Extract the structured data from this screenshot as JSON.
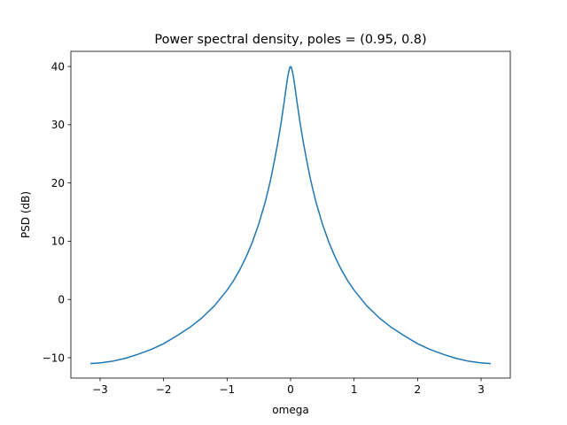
{
  "chart_data": {
    "type": "line",
    "title": "Power spectral density, poles = (0.95, 0.8)",
    "xlabel": "omega",
    "ylabel": "PSD (dB)",
    "xlim": [
      -3.46,
      3.46
    ],
    "ylim": [
      -13.5,
      42.6
    ],
    "xticks": [
      -3,
      -2,
      -1,
      0,
      1,
      2,
      3
    ],
    "xtick_labels": [
      "−3",
      "−2",
      "−1",
      "0",
      "1",
      "2",
      "3"
    ],
    "yticks": [
      -10,
      0,
      10,
      20,
      30,
      40
    ],
    "ytick_labels": [
      "−10",
      "0",
      "10",
      "20",
      "30",
      "40"
    ],
    "grid": false,
    "line_color": "#1f77b4",
    "series": [
      {
        "x": [
          -3.1416,
          -3.0,
          -2.8,
          -2.6,
          -2.4,
          -2.2,
          -2.0,
          -1.8,
          -1.6,
          -1.4,
          -1.2,
          -1.0,
          -0.9,
          -0.8,
          -0.7,
          -0.6,
          -0.5,
          -0.4,
          -0.35,
          -0.3,
          -0.25,
          -0.2,
          -0.15,
          -0.1,
          -0.07,
          -0.05,
          -0.03,
          -0.01,
          0.0,
          0.01,
          0.03,
          0.05,
          0.07,
          0.1,
          0.15,
          0.2,
          0.25,
          0.3,
          0.35,
          0.4,
          0.5,
          0.6,
          0.7,
          0.8,
          0.9,
          1.0,
          1.2,
          1.4,
          1.6,
          1.8,
          2.0,
          2.2,
          2.4,
          2.6,
          2.8,
          3.0,
          3.1416
        ],
        "y": [
          -11.0,
          -10.9,
          -10.6,
          -10.1,
          -9.4,
          -8.6,
          -7.6,
          -6.3,
          -4.9,
          -3.2,
          -1.1,
          1.6,
          3.2,
          5.1,
          7.3,
          9.9,
          13.0,
          16.7,
          18.9,
          21.3,
          24.1,
          27.0,
          30.3,
          34.0,
          36.4,
          37.9,
          39.1,
          39.9,
          40.0,
          39.9,
          39.1,
          37.9,
          36.4,
          34.0,
          30.3,
          27.0,
          24.1,
          21.3,
          18.9,
          16.7,
          13.0,
          9.9,
          7.3,
          5.1,
          3.2,
          1.6,
          -1.1,
          -3.2,
          -4.9,
          -6.3,
          -7.6,
          -8.6,
          -9.4,
          -10.1,
          -10.6,
          -10.9,
          -11.0
        ]
      }
    ]
  }
}
